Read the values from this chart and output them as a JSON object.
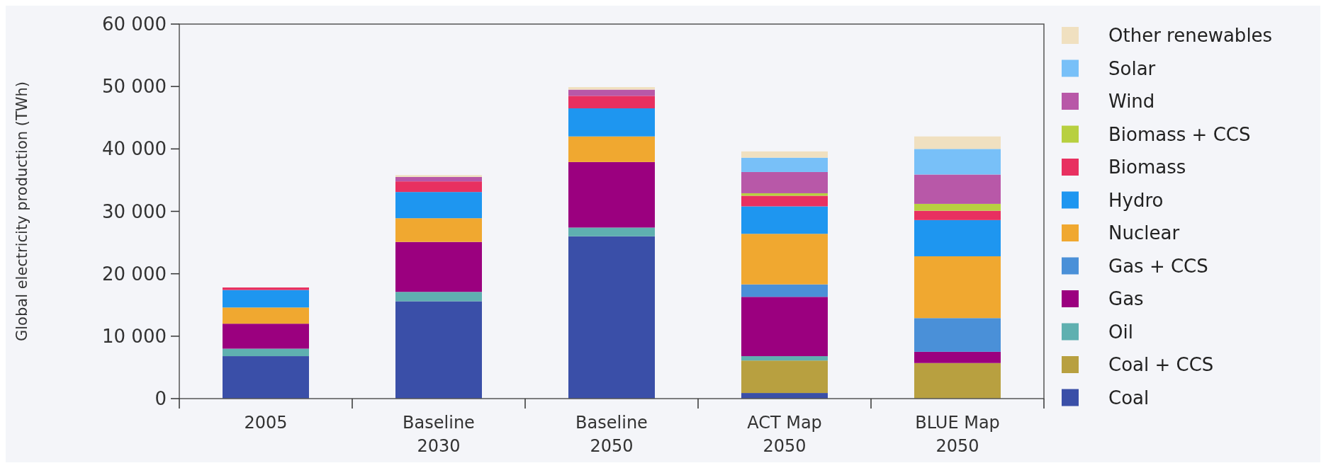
{
  "chart_data": {
    "type": "bar",
    "stacked": true,
    "ylabel": "Global electricity production (TWh)",
    "categories": [
      "2005",
      "Baseline 2030",
      "Baseline 2050",
      "ACT Map 2050",
      "BLUE Map 2050"
    ],
    "ylim": [
      0,
      60000
    ],
    "yticks": [
      {
        "value": 0,
        "label": "0"
      },
      {
        "value": 10000,
        "label": "10 000"
      },
      {
        "value": 20000,
        "label": "20 000"
      },
      {
        "value": 30000,
        "label": "30 000"
      },
      {
        "value": 40000,
        "label": "40 000"
      },
      {
        "value": 50000,
        "label": "50 000"
      },
      {
        "value": 60000,
        "label": "60 000"
      }
    ],
    "legend": "right",
    "grid": false,
    "series": [
      {
        "name": "Coal",
        "color": "#3a4fa8",
        "values": [
          6800,
          15600,
          26000,
          900,
          0
        ]
      },
      {
        "name": "Coal + CCS",
        "color": "#b8a040",
        "values": [
          0,
          0,
          0,
          5200,
          5700
        ]
      },
      {
        "name": "Oil",
        "color": "#5fb0b0",
        "values": [
          1200,
          1500,
          1400,
          700,
          0
        ]
      },
      {
        "name": "Gas",
        "color": "#9b007f",
        "values": [
          4000,
          8000,
          10500,
          9500,
          1800
        ]
      },
      {
        "name": "Gas + CCS",
        "color": "#4a90d8",
        "values": [
          0,
          0,
          0,
          2000,
          5400
        ]
      },
      {
        "name": "Nuclear",
        "color": "#f0a830",
        "values": [
          2600,
          3800,
          4100,
          8100,
          9900
        ]
      },
      {
        "name": "Hydro",
        "color": "#1e96f0",
        "values": [
          2800,
          4200,
          4500,
          4400,
          5800
        ]
      },
      {
        "name": "Biomass",
        "color": "#e83060",
        "values": [
          400,
          1700,
          2000,
          1700,
          1500
        ]
      },
      {
        "name": "Biomass + CCS",
        "color": "#b8d040",
        "values": [
          0,
          0,
          0,
          400,
          1100
        ]
      },
      {
        "name": "Wind",
        "color": "#b858a8",
        "values": [
          0,
          700,
          1000,
          3400,
          4700
        ]
      },
      {
        "name": "Solar",
        "color": "#78c0f8",
        "values": [
          0,
          0,
          0,
          2300,
          4100
        ]
      },
      {
        "name": "Other renewables",
        "color": "#f0e0c0",
        "values": [
          0,
          300,
          400,
          1000,
          2000
        ]
      }
    ]
  }
}
